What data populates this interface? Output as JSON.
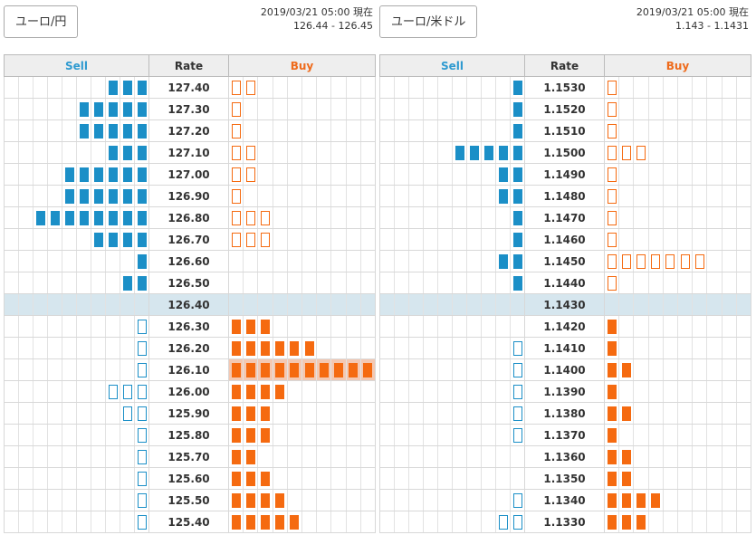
{
  "panels": [
    {
      "pair": "ユーロ/円",
      "timestamp": "2019/03/21 05:00 現在",
      "bid_ask": "126.44 - 126.45",
      "headers": {
        "sell": "Sell",
        "rate": "Rate",
        "buy": "Buy"
      },
      "rows": [
        {
          "rate": "127.40",
          "sell": [
            3,
            0
          ],
          "buy": [
            0,
            2
          ]
        },
        {
          "rate": "127.30",
          "sell": [
            5,
            0
          ],
          "buy": [
            0,
            1
          ]
        },
        {
          "rate": "127.20",
          "sell": [
            5,
            0
          ],
          "buy": [
            0,
            1
          ]
        },
        {
          "rate": "127.10",
          "sell": [
            3,
            0
          ],
          "buy": [
            0,
            2
          ]
        },
        {
          "rate": "127.00",
          "sell": [
            6,
            0
          ],
          "buy": [
            0,
            2
          ]
        },
        {
          "rate": "126.90",
          "sell": [
            6,
            0
          ],
          "buy": [
            0,
            1
          ]
        },
        {
          "rate": "126.80",
          "sell": [
            8,
            0
          ],
          "buy": [
            0,
            3
          ]
        },
        {
          "rate": "126.70",
          "sell": [
            4,
            0
          ],
          "buy": [
            0,
            3
          ]
        },
        {
          "rate": "126.60",
          "sell": [
            1,
            0
          ],
          "buy": [
            0,
            0
          ]
        },
        {
          "rate": "126.50",
          "sell": [
            2,
            0
          ],
          "buy": [
            0,
            0
          ]
        },
        {
          "rate": "126.40",
          "sell": [
            0,
            0
          ],
          "buy": [
            0,
            0
          ],
          "current": true
        },
        {
          "rate": "126.30",
          "sell": [
            0,
            1
          ],
          "buy": [
            3,
            0
          ]
        },
        {
          "rate": "126.20",
          "sell": [
            0,
            1
          ],
          "buy": [
            6,
            0
          ]
        },
        {
          "rate": "126.10",
          "sell": [
            0,
            1
          ],
          "buy": [
            10,
            0
          ],
          "highlight": true
        },
        {
          "rate": "126.00",
          "sell": [
            0,
            3
          ],
          "buy": [
            4,
            0
          ]
        },
        {
          "rate": "125.90",
          "sell": [
            0,
            2
          ],
          "buy": [
            3,
            0
          ]
        },
        {
          "rate": "125.80",
          "sell": [
            0,
            1
          ],
          "buy": [
            3,
            0
          ]
        },
        {
          "rate": "125.70",
          "sell": [
            0,
            1
          ],
          "buy": [
            2,
            0
          ]
        },
        {
          "rate": "125.60",
          "sell": [
            0,
            1
          ],
          "buy": [
            3,
            0
          ]
        },
        {
          "rate": "125.50",
          "sell": [
            0,
            1
          ],
          "buy": [
            4,
            0
          ]
        },
        {
          "rate": "125.40",
          "sell": [
            0,
            1
          ],
          "buy": [
            5,
            0
          ]
        }
      ]
    },
    {
      "pair": "ユーロ/米ドル",
      "timestamp": "2019/03/21 05:00 現在",
      "bid_ask": "1.143 - 1.1431",
      "headers": {
        "sell": "Sell",
        "rate": "Rate",
        "buy": "Buy"
      },
      "rows": [
        {
          "rate": "1.1530",
          "sell": [
            1,
            0
          ],
          "buy": [
            0,
            1
          ]
        },
        {
          "rate": "1.1520",
          "sell": [
            1,
            0
          ],
          "buy": [
            0,
            1
          ]
        },
        {
          "rate": "1.1510",
          "sell": [
            1,
            0
          ],
          "buy": [
            0,
            1
          ]
        },
        {
          "rate": "1.1500",
          "sell": [
            5,
            0
          ],
          "buy": [
            0,
            3
          ]
        },
        {
          "rate": "1.1490",
          "sell": [
            2,
            0
          ],
          "buy": [
            0,
            1
          ]
        },
        {
          "rate": "1.1480",
          "sell": [
            2,
            0
          ],
          "buy": [
            0,
            1
          ]
        },
        {
          "rate": "1.1470",
          "sell": [
            1,
            0
          ],
          "buy": [
            0,
            1
          ]
        },
        {
          "rate": "1.1460",
          "sell": [
            1,
            0
          ],
          "buy": [
            0,
            1
          ]
        },
        {
          "rate": "1.1450",
          "sell": [
            2,
            0
          ],
          "buy": [
            0,
            7
          ]
        },
        {
          "rate": "1.1440",
          "sell": [
            1,
            0
          ],
          "buy": [
            0,
            1
          ]
        },
        {
          "rate": "1.1430",
          "sell": [
            0,
            0
          ],
          "buy": [
            0,
            0
          ],
          "current": true
        },
        {
          "rate": "1.1420",
          "sell": [
            0,
            0
          ],
          "buy": [
            1,
            0
          ]
        },
        {
          "rate": "1.1410",
          "sell": [
            0,
            1
          ],
          "buy": [
            1,
            0
          ]
        },
        {
          "rate": "1.1400",
          "sell": [
            0,
            1
          ],
          "buy": [
            2,
            0
          ]
        },
        {
          "rate": "1.1390",
          "sell": [
            0,
            1
          ],
          "buy": [
            1,
            0
          ]
        },
        {
          "rate": "1.1380",
          "sell": [
            0,
            1
          ],
          "buy": [
            2,
            0
          ]
        },
        {
          "rate": "1.1370",
          "sell": [
            0,
            1
          ],
          "buy": [
            1,
            0
          ]
        },
        {
          "rate": "1.1360",
          "sell": [
            0,
            0
          ],
          "buy": [
            2,
            0
          ]
        },
        {
          "rate": "1.1350",
          "sell": [
            0,
            0
          ],
          "buy": [
            2,
            0
          ]
        },
        {
          "rate": "1.1340",
          "sell": [
            0,
            1
          ],
          "buy": [
            4,
            0
          ]
        },
        {
          "rate": "1.1330",
          "sell": [
            0,
            2
          ],
          "buy": [
            3,
            0
          ]
        }
      ]
    }
  ]
}
